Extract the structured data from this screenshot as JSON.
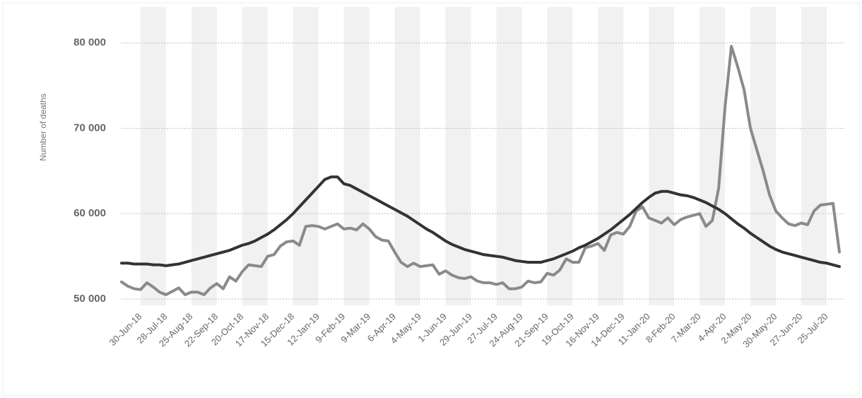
{
  "chart_data": {
    "type": "line",
    "y_label": "Number of deaths",
    "categories": [
      null,
      null,
      null,
      "30-Jun-18",
      null,
      null,
      null,
      "28-Jul-18",
      null,
      null,
      null,
      "25-Aug-18",
      null,
      null,
      null,
      "22-Sep-18",
      null,
      null,
      null,
      "20-Oct-18",
      null,
      null,
      null,
      "17-Nov-18",
      null,
      null,
      null,
      "15-Dec-18",
      null,
      null,
      null,
      "12-Jan-19",
      null,
      null,
      null,
      "9-Feb-19",
      null,
      null,
      null,
      "9-Mar-19",
      null,
      null,
      null,
      "6-Apr-19",
      null,
      null,
      null,
      "4-May-19",
      null,
      null,
      null,
      "1-Jun-19",
      null,
      null,
      null,
      "29-Jun-19",
      null,
      null,
      null,
      "27-Jul-19",
      null,
      null,
      null,
      "24-Aug-19",
      null,
      null,
      null,
      "21-Sep-19",
      null,
      null,
      null,
      "19-Oct-19",
      null,
      null,
      null,
      "16-Nov-19",
      null,
      null,
      null,
      "14-Dec-19",
      null,
      null,
      null,
      "11-Jan-20",
      null,
      null,
      null,
      "8-Feb-20",
      null,
      null,
      null,
      "7-Mar-20",
      null,
      null,
      null,
      "4-Apr-20",
      null,
      null,
      null,
      "2-May-20",
      null,
      null,
      null,
      "30-May-20",
      null,
      null,
      null,
      "27-Jun-20",
      null,
      null,
      null,
      "25-Jul-20",
      null,
      null
    ],
    "series": [
      {
        "color": "#8a8a8a",
        "values": [
          52000,
          51500,
          51200,
          51100,
          51900,
          51400,
          50800,
          50500,
          50900,
          51300,
          50500,
          50800,
          50800,
          50500,
          51300,
          51800,
          51200,
          52600,
          52100,
          53200,
          54000,
          53900,
          53800,
          55000,
          55200,
          56200,
          56700,
          56800,
          56300,
          58500,
          58600,
          58500,
          58200,
          58500,
          58800,
          58200,
          58300,
          58100,
          58800,
          58200,
          57300,
          56900,
          56800,
          55500,
          54300,
          53800,
          54200,
          53800,
          53900,
          54000,
          52900,
          53300,
          52800,
          52500,
          52400,
          52600,
          52100,
          51900,
          51900,
          51700,
          51900,
          51200,
          51200,
          51400,
          52100,
          51900,
          52000,
          53000,
          52800,
          53400,
          54700,
          54300,
          54300,
          56000,
          56200,
          56500,
          55700,
          57500,
          57800,
          57600,
          58500,
          60300,
          60800,
          59500,
          59200,
          58900,
          59500,
          58700,
          59300,
          59600,
          59800,
          60000,
          58500,
          59200,
          63000,
          72500,
          79600,
          77200,
          74500,
          70000,
          67500,
          65000,
          62200,
          60300,
          59500,
          58800,
          58600,
          58900,
          58700,
          60300,
          61000,
          61100,
          61200,
          55500
        ]
      },
      {
        "color": "#333333",
        "values": [
          54200,
          54200,
          54100,
          54100,
          54100,
          54000,
          54000,
          53900,
          54000,
          54100,
          54300,
          54500,
          54700,
          54900,
          55100,
          55300,
          55500,
          55700,
          56000,
          56300,
          56500,
          56800,
          57200,
          57600,
          58100,
          58700,
          59300,
          60000,
          60800,
          61600,
          62400,
          63200,
          64000,
          64300,
          64300,
          63500,
          63300,
          62900,
          62500,
          62100,
          61700,
          61300,
          60900,
          60500,
          60100,
          59700,
          59200,
          58700,
          58200,
          57800,
          57300,
          56800,
          56400,
          56100,
          55800,
          55600,
          55400,
          55200,
          55100,
          55000,
          54900,
          54700,
          54500,
          54400,
          54300,
          54300,
          54300,
          54500,
          54700,
          55000,
          55300,
          55600,
          56000,
          56300,
          56700,
          57100,
          57600,
          58100,
          58700,
          59300,
          59900,
          60600,
          61300,
          61900,
          62400,
          62600,
          62600,
          62400,
          62200,
          62100,
          61900,
          61600,
          61300,
          60900,
          60500,
          60000,
          59400,
          58800,
          58300,
          57700,
          57200,
          56700,
          56200,
          55800,
          55500,
          55300,
          55100,
          54900,
          54700,
          54500,
          54300,
          54200,
          54000,
          53800
        ]
      }
    ],
    "ylim": [
      49250,
      84200
    ],
    "yticks": [
      {
        "value": 50000,
        "label": "50 000"
      },
      {
        "value": 60000,
        "label": "60 000"
      },
      {
        "value": 70000,
        "label": "70 000"
      },
      {
        "value": 80000,
        "label": "80 000"
      }
    ],
    "grid": true
  }
}
